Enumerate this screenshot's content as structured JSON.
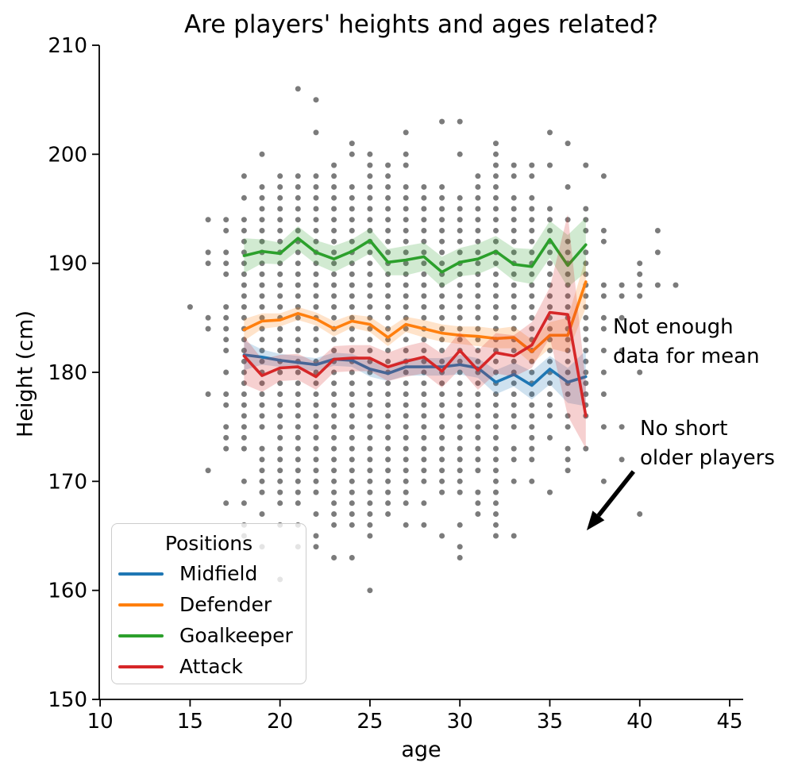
{
  "chart_data": {
    "type": "scatter",
    "title": "Are players' heights and ages related?",
    "xlabel": "age",
    "ylabel": "Height (cm)",
    "xlim": [
      9.95,
      45.75
    ],
    "ylim": [
      150,
      210
    ],
    "x_ticks": [
      10,
      15,
      20,
      25,
      30,
      35,
      40,
      45
    ],
    "y_ticks": [
      150,
      160,
      170,
      180,
      190,
      200,
      210
    ],
    "grid": false,
    "legend": {
      "title": "Positions",
      "position": "lower left"
    },
    "scatter": {
      "color": "#7b7b7b",
      "points": [
        {
          "age": 15,
          "heights": [
            186
          ]
        },
        {
          "age": 16,
          "heights": [
            171,
            178,
            184,
            185,
            190,
            191,
            194
          ]
        },
        {
          "age": 17,
          "heights": [
            168,
            173,
            174,
            175,
            177,
            178,
            180,
            182,
            183,
            184,
            185,
            186,
            189,
            190,
            191,
            193,
            194
          ]
        },
        {
          "age": 18,
          "heights": [
            165,
            166,
            168,
            170,
            173,
            174,
            175,
            176,
            177,
            178,
            179,
            180,
            181,
            182,
            183,
            184,
            185,
            186,
            187,
            188,
            189,
            190,
            191,
            192,
            193,
            194,
            196,
            198
          ]
        },
        {
          "age": 19,
          "heights": [
            164,
            167,
            169,
            170,
            171,
            172,
            173,
            175,
            176,
            177,
            178,
            179,
            180,
            181,
            182,
            183,
            184,
            185,
            186,
            187,
            188,
            189,
            190,
            191,
            192,
            193,
            194,
            195,
            196,
            197,
            200
          ]
        },
        {
          "age": 20,
          "heights": [
            161,
            166,
            168,
            169,
            170,
            171,
            172,
            173,
            174,
            175,
            176,
            177,
            178,
            179,
            180,
            181,
            182,
            183,
            184,
            185,
            186,
            187,
            188,
            189,
            190,
            191,
            192,
            193,
            194,
            195,
            196,
            197,
            198
          ]
        },
        {
          "age": 21,
          "heights": [
            164,
            166,
            168,
            169,
            170,
            171,
            172,
            173,
            174,
            175,
            176,
            177,
            178,
            179,
            180,
            181,
            182,
            183,
            184,
            185,
            186,
            187,
            188,
            189,
            190,
            191,
            192,
            193,
            194,
            195,
            196,
            197,
            198,
            206
          ]
        },
        {
          "age": 22,
          "heights": [
            164,
            165,
            167,
            169,
            170,
            171,
            172,
            173,
            174,
            175,
            176,
            177,
            178,
            179,
            180,
            181,
            182,
            183,
            184,
            185,
            186,
            187,
            188,
            189,
            190,
            191,
            192,
            193,
            194,
            195,
            196,
            197,
            198,
            202,
            205
          ]
        },
        {
          "age": 23,
          "heights": [
            163,
            166,
            167,
            168,
            169,
            170,
            171,
            172,
            173,
            174,
            175,
            176,
            177,
            178,
            179,
            180,
            181,
            182,
            183,
            184,
            185,
            186,
            187,
            188,
            189,
            190,
            191,
            192,
            193,
            194,
            195,
            196,
            197,
            198,
            199
          ]
        },
        {
          "age": 24,
          "heights": [
            163,
            166,
            167,
            168,
            169,
            170,
            171,
            172,
            173,
            174,
            175,
            176,
            177,
            178,
            179,
            180,
            181,
            182,
            183,
            184,
            185,
            186,
            187,
            188,
            189,
            190,
            191,
            192,
            193,
            194,
            195,
            196,
            197,
            200,
            201
          ]
        },
        {
          "age": 25,
          "heights": [
            160,
            165,
            166,
            167,
            168,
            169,
            170,
            171,
            172,
            173,
            174,
            175,
            176,
            177,
            178,
            179,
            180,
            181,
            182,
            183,
            184,
            185,
            186,
            187,
            188,
            189,
            190,
            191,
            192,
            193,
            194,
            195,
            196,
            197,
            198,
            199,
            200
          ]
        },
        {
          "age": 26,
          "heights": [
            167,
            168,
            169,
            170,
            171,
            172,
            173,
            174,
            175,
            176,
            177,
            178,
            179,
            180,
            181,
            182,
            183,
            184,
            185,
            186,
            187,
            188,
            189,
            190,
            191,
            192,
            193,
            194,
            195,
            196,
            197,
            198,
            199
          ]
        },
        {
          "age": 27,
          "heights": [
            166,
            168,
            169,
            170,
            171,
            172,
            173,
            174,
            175,
            176,
            177,
            178,
            179,
            180,
            181,
            182,
            183,
            184,
            185,
            186,
            187,
            188,
            189,
            190,
            191,
            192,
            193,
            194,
            195,
            196,
            197,
            199,
            200,
            202
          ]
        },
        {
          "age": 28,
          "heights": [
            166,
            168,
            170,
            171,
            172,
            173,
            174,
            175,
            176,
            177,
            178,
            179,
            180,
            181,
            182,
            183,
            184,
            185,
            186,
            187,
            188,
            189,
            190,
            191,
            192,
            193,
            194,
            195,
            196,
            197
          ]
        },
        {
          "age": 29,
          "heights": [
            165,
            169,
            170,
            171,
            172,
            173,
            174,
            175,
            176,
            177,
            178,
            179,
            180,
            181,
            182,
            183,
            184,
            185,
            186,
            187,
            188,
            189,
            190,
            191,
            192,
            193,
            194,
            195,
            196,
            197,
            203
          ]
        },
        {
          "age": 30,
          "heights": [
            163,
            164,
            166,
            169,
            170,
            171,
            172,
            173,
            174,
            175,
            176,
            177,
            178,
            179,
            180,
            181,
            182,
            183,
            184,
            185,
            186,
            187,
            188,
            189,
            190,
            191,
            192,
            193,
            194,
            195,
            196,
            200,
            203
          ]
        },
        {
          "age": 31,
          "heights": [
            167,
            168,
            169,
            171,
            172,
            173,
            174,
            175,
            176,
            177,
            178,
            179,
            180,
            181,
            182,
            183,
            184,
            185,
            186,
            187,
            188,
            189,
            190,
            191,
            192,
            193,
            194,
            195,
            196,
            197,
            198
          ]
        },
        {
          "age": 32,
          "heights": [
            165,
            166,
            167,
            168,
            169,
            170,
            171,
            172,
            173,
            174,
            175,
            176,
            177,
            178,
            179,
            180,
            181,
            182,
            183,
            184,
            185,
            186,
            187,
            188,
            189,
            190,
            191,
            192,
            193,
            194,
            195,
            196,
            197,
            198,
            199,
            200,
            201
          ]
        },
        {
          "age": 33,
          "heights": [
            165,
            170,
            172,
            173,
            175,
            176,
            177,
            178,
            179,
            180,
            181,
            182,
            183,
            184,
            185,
            186,
            187,
            188,
            189,
            190,
            191,
            192,
            193,
            194,
            195,
            196,
            198,
            199
          ]
        },
        {
          "age": 34,
          "heights": [
            170,
            172,
            173,
            174,
            175,
            176,
            177,
            178,
            179,
            180,
            181,
            182,
            183,
            184,
            185,
            186,
            187,
            188,
            189,
            190,
            191,
            192,
            193,
            194,
            195,
            196,
            198,
            199
          ]
        },
        {
          "age": 35,
          "heights": [
            169,
            174,
            176,
            177,
            178,
            179,
            180,
            181,
            182,
            183,
            184,
            185,
            186,
            187,
            188,
            189,
            190,
            191,
            192,
            193,
            194,
            195,
            199,
            202
          ]
        },
        {
          "age": 36,
          "heights": [
            171,
            172,
            173,
            175,
            176,
            178,
            179,
            180,
            181,
            182,
            183,
            184,
            185,
            186,
            187,
            188,
            189,
            190,
            191,
            192,
            194,
            197,
            201
          ]
        },
        {
          "age": 37,
          "heights": [
            173,
            176,
            177,
            178,
            179,
            180,
            181,
            182,
            183,
            184,
            185,
            186,
            187,
            188,
            189,
            190,
            191,
            193,
            194,
            195,
            199
          ]
        },
        {
          "age": 38,
          "heights": [
            170,
            175,
            178,
            180,
            182,
            184,
            185,
            187,
            188,
            192,
            193,
            198
          ]
        },
        {
          "age": 39,
          "heights": [
            172,
            175,
            182,
            185,
            187,
            188
          ]
        },
        {
          "age": 40,
          "heights": [
            167,
            180,
            187,
            188,
            189,
            190
          ]
        },
        {
          "age": 41,
          "heights": [
            188,
            191,
            193
          ]
        },
        {
          "age": 42,
          "heights": [
            188
          ]
        }
      ]
    },
    "ages": [
      18,
      19,
      20,
      21,
      22,
      23,
      24,
      25,
      26,
      27,
      28,
      29,
      30,
      31,
      32,
      33,
      34,
      35,
      36,
      37
    ],
    "series": [
      {
        "name": "Midfield",
        "color": "#1f77b4",
        "mean": [
          181.6,
          181.4,
          181.1,
          180.9,
          180.7,
          181.2,
          181.1,
          180.3,
          179.9,
          180.5,
          180.5,
          180.5,
          180.7,
          180.4,
          179.1,
          179.8,
          178.8,
          180.3,
          179.1,
          179.6
        ],
        "lo": [
          180.2,
          180.7,
          180.5,
          180.3,
          180.1,
          180.6,
          180.5,
          179.6,
          179.2,
          179.7,
          179.7,
          179.7,
          179.8,
          179.5,
          178.0,
          178.7,
          177.5,
          178.9,
          177.2,
          176.9
        ],
        "hi": [
          182.9,
          182.1,
          181.7,
          181.5,
          181.3,
          181.8,
          181.7,
          181.0,
          180.6,
          181.3,
          181.3,
          181.3,
          181.6,
          181.3,
          180.2,
          180.9,
          180.1,
          181.5,
          180.4,
          182.0
        ]
      },
      {
        "name": "Defender",
        "color": "#ff7f0e",
        "mean": [
          183.9,
          184.7,
          184.8,
          185.4,
          184.9,
          184.0,
          184.7,
          184.4,
          183.2,
          184.4,
          184.0,
          183.6,
          183.4,
          183.3,
          183.1,
          183.2,
          181.9,
          183.4,
          183.4,
          188.3
        ],
        "lo": [
          182.9,
          184.0,
          184.2,
          184.8,
          184.3,
          183.3,
          184.1,
          183.7,
          182.4,
          183.7,
          183.2,
          182.8,
          182.6,
          182.4,
          182.2,
          182.2,
          180.8,
          182.2,
          181.8,
          185.9
        ],
        "hi": [
          184.9,
          185.4,
          185.4,
          186.0,
          185.5,
          184.7,
          185.3,
          185.1,
          184.0,
          185.1,
          184.8,
          184.4,
          184.2,
          184.2,
          184.0,
          184.2,
          183.0,
          184.6,
          185.0,
          190.5
        ]
      },
      {
        "name": "Goalkeeper",
        "color": "#2ca02c",
        "mean": [
          190.7,
          191.1,
          190.9,
          192.3,
          191.0,
          190.4,
          191.1,
          192.1,
          190.1,
          190.3,
          190.6,
          189.2,
          190.1,
          190.4,
          191.1,
          189.9,
          189.7,
          192.2,
          189.8,
          191.7
        ],
        "lo": [
          189.1,
          190.0,
          189.9,
          191.2,
          189.9,
          189.2,
          190.0,
          190.9,
          188.9,
          188.9,
          189.3,
          187.8,
          188.8,
          189.0,
          189.7,
          188.4,
          188.1,
          190.5,
          187.8,
          189.2
        ],
        "hi": [
          192.3,
          192.2,
          191.9,
          193.4,
          192.1,
          191.6,
          192.2,
          193.2,
          191.3,
          191.6,
          191.9,
          190.6,
          191.4,
          191.8,
          192.5,
          191.4,
          191.3,
          193.9,
          192.6,
          194.2
        ]
      },
      {
        "name": "Attack",
        "color": "#d62728",
        "mean": [
          181.5,
          179.7,
          180.4,
          180.5,
          179.6,
          181.2,
          181.3,
          181.3,
          180.5,
          181.0,
          181.4,
          180.1,
          182.0,
          180.2,
          181.8,
          181.5,
          182.5,
          185.5,
          185.3,
          176.0
        ],
        "lo": [
          178.9,
          178.2,
          179.2,
          179.3,
          178.4,
          180.0,
          180.1,
          180.1,
          179.2,
          179.6,
          179.9,
          178.6,
          180.3,
          178.4,
          179.9,
          179.6,
          180.4,
          183.2,
          176.0,
          173.0
        ],
        "hi": [
          183.3,
          181.2,
          181.6,
          181.7,
          180.9,
          182.4,
          182.5,
          182.5,
          181.8,
          182.4,
          182.8,
          181.7,
          183.7,
          182.0,
          183.6,
          183.4,
          184.6,
          187.8,
          194.5,
          179.0
        ]
      }
    ],
    "annotations": [
      {
        "lines": [
          "Not enough",
          "data for mean"
        ]
      },
      {
        "lines": [
          "No short",
          "older players"
        ]
      }
    ],
    "arrow": {
      "from": [
        39.65,
        170.9
      ],
      "to": [
        37.05,
        165.5
      ],
      "color": "#000000"
    }
  }
}
